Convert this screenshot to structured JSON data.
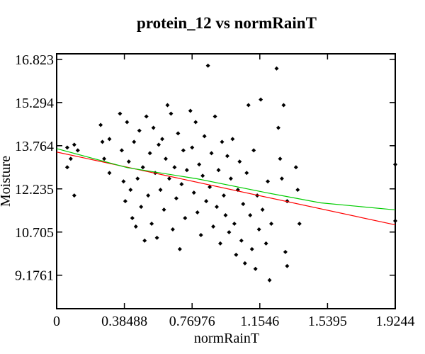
{
  "chart_data": {
    "type": "scatter",
    "title": "protein_12 vs normRainT",
    "x_label": "normRainT",
    "y_label": "Moisture",
    "xlim": [
      0,
      1.9244
    ],
    "ylim": [
      7.99,
      17.02
    ],
    "xticks": [
      0,
      0.38488,
      0.76976,
      1.1546,
      1.5395,
      1.9244
    ],
    "yticks": [
      9.1761,
      10.705,
      12.235,
      13.764,
      15.294,
      16.823
    ],
    "series": [
      {
        "type": "scatter",
        "color": "#000000",
        "x": [
          0.06,
          0.06,
          0.08,
          0.1,
          0.1,
          0.12,
          0.25,
          0.26,
          0.27,
          0.3,
          0.3,
          0.36,
          0.37,
          0.38,
          0.39,
          0.4,
          0.41,
          0.42,
          0.43,
          0.44,
          0.45,
          0.46,
          0.47,
          0.48,
          0.49,
          0.5,
          0.51,
          0.52,
          0.53,
          0.54,
          0.55,
          0.56,
          0.57,
          0.58,
          0.59,
          0.6,
          0.61,
          0.62,
          0.63,
          0.64,
          0.65,
          0.66,
          0.67,
          0.68,
          0.69,
          0.7,
          0.71,
          0.72,
          0.73,
          0.74,
          0.76,
          0.77,
          0.78,
          0.79,
          0.8,
          0.81,
          0.82,
          0.83,
          0.84,
          0.85,
          0.86,
          0.87,
          0.88,
          0.89,
          0.9,
          0.91,
          0.92,
          0.93,
          0.94,
          0.95,
          0.96,
          0.97,
          0.98,
          0.99,
          1.0,
          1.01,
          1.02,
          1.03,
          1.04,
          1.05,
          1.06,
          1.07,
          1.08,
          1.09,
          1.1,
          1.11,
          1.12,
          1.13,
          1.14,
          1.15,
          1.16,
          1.17,
          1.19,
          1.2,
          1.21,
          1.22,
          1.25,
          1.26,
          1.27,
          1.28,
          1.29,
          1.3,
          1.31,
          1.31,
          1.36,
          1.37,
          1.38,
          1.9244,
          1.9244
        ],
        "values": [
          13.0,
          13.7,
          13.3,
          13.8,
          12.0,
          13.6,
          14.5,
          13.9,
          13.3,
          14.0,
          12.8,
          14.9,
          13.6,
          12.5,
          11.8,
          14.6,
          13.2,
          12.2,
          11.2,
          13.9,
          10.9,
          12.6,
          14.3,
          11.6,
          13.0,
          10.4,
          14.8,
          12.0,
          13.5,
          11.0,
          14.4,
          12.8,
          10.5,
          13.8,
          12.2,
          14.0,
          11.5,
          13.3,
          15.2,
          12.6,
          14.9,
          10.8,
          13.0,
          11.9,
          14.2,
          10.1,
          12.4,
          13.6,
          11.2,
          12.9,
          15.0,
          13.7,
          12.1,
          14.6,
          11.4,
          13.1,
          10.6,
          12.7,
          14.1,
          11.8,
          16.6,
          12.3,
          13.5,
          10.9,
          14.8,
          11.6,
          12.9,
          10.3,
          13.9,
          12.0,
          11.3,
          13.4,
          10.7,
          12.6,
          14.0,
          11.0,
          9.9,
          12.2,
          13.2,
          10.4,
          11.7,
          9.6,
          12.8,
          15.2,
          11.3,
          10.1,
          13.6,
          9.4,
          12.0,
          10.8,
          15.4,
          11.5,
          10.3,
          12.5,
          9.0,
          11.0,
          16.5,
          14.4,
          13.3,
          12.6,
          15.2,
          10.0,
          11.8,
          9.5,
          13.0,
          12.2,
          11.0,
          13.1,
          11.1
        ]
      },
      {
        "type": "line",
        "color": "#ff0000",
        "x": [
          0,
          1.9244
        ],
        "values": [
          13.54,
          10.96
        ]
      },
      {
        "type": "line",
        "color": "#00cc00",
        "x": [
          0,
          0.4,
          0.8,
          1.2,
          1.5,
          1.9244
        ],
        "values": [
          13.66,
          12.99,
          12.59,
          12.09,
          11.74,
          11.49
        ]
      }
    ]
  }
}
